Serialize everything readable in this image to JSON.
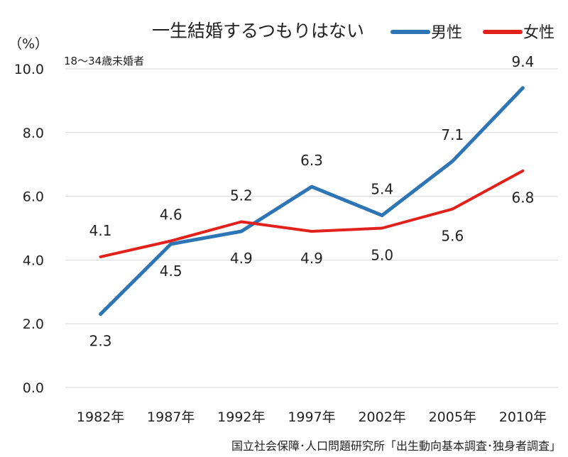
{
  "chart_data": {
    "type": "line",
    "title": "一生結婚するつもりはない",
    "subtitle": "18～34歳未婚者",
    "unit_label": "（%）",
    "source": "国立社会保障･人口問題研究所「出生動向基本調査･独身者調査」",
    "categories": [
      "1982年",
      "1987年",
      "1992年",
      "1997年",
      "2002年",
      "2005年",
      "2010年"
    ],
    "y_ticks": [
      "0.0",
      "2.0",
      "4.0",
      "6.0",
      "8.0",
      "10.0"
    ],
    "ylim": [
      0,
      10
    ],
    "grid": true,
    "legend_position": "top-right",
    "series": [
      {
        "name": "男性",
        "color": "#2e75b6",
        "values": [
          2.3,
          4.5,
          4.9,
          6.3,
          5.4,
          7.1,
          9.4
        ],
        "labels": [
          "2.3",
          "4.5",
          "4.9",
          "6.3",
          "5.4",
          "7.1",
          "9.4"
        ],
        "label_side": [
          "below",
          "below",
          "below",
          "above",
          "above",
          "above",
          "above"
        ]
      },
      {
        "name": "女性",
        "color": "#e3211c",
        "values": [
          4.1,
          4.6,
          5.2,
          4.9,
          5.0,
          5.6,
          6.8
        ],
        "labels": [
          "4.1",
          "4.6",
          "5.2",
          "4.9",
          "5.0",
          "5.6",
          "6.8"
        ],
        "label_side": [
          "above",
          "above",
          "above",
          "below",
          "below",
          "below",
          "below"
        ]
      }
    ]
  }
}
